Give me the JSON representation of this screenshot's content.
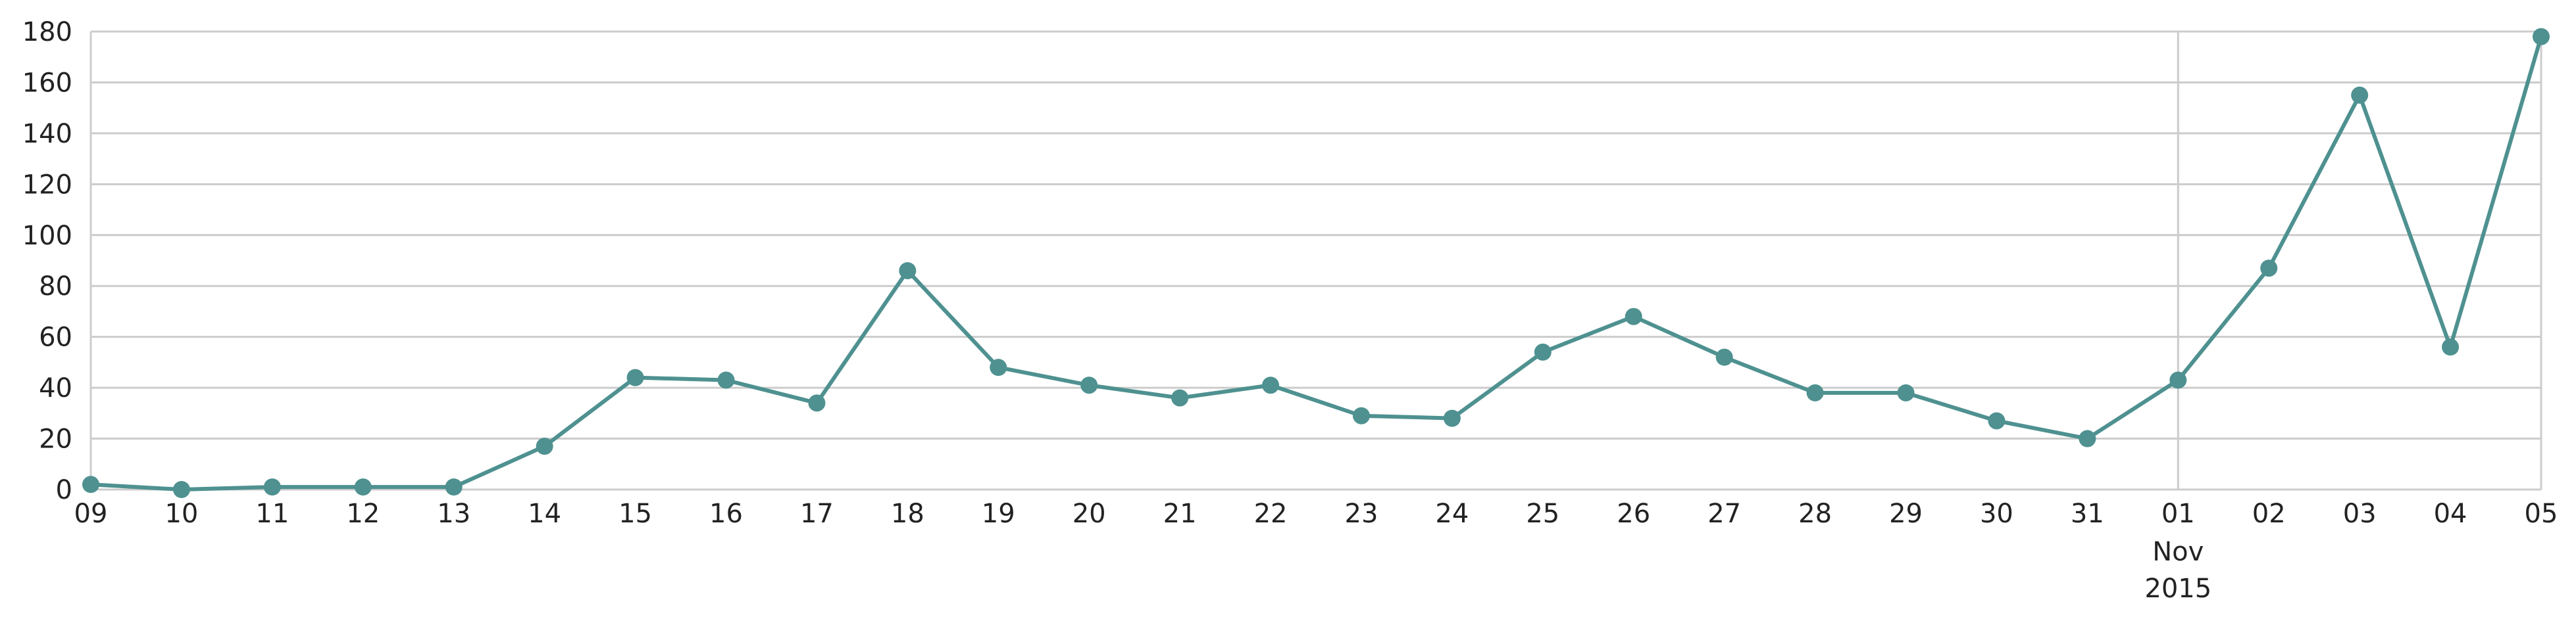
{
  "chart_data": {
    "type": "line",
    "x": [
      "09",
      "10",
      "11",
      "12",
      "13",
      "14",
      "15",
      "16",
      "17",
      "18",
      "19",
      "20",
      "21",
      "22",
      "23",
      "24",
      "25",
      "26",
      "27",
      "28",
      "29",
      "30",
      "31",
      "01",
      "02",
      "03",
      "04",
      "05"
    ],
    "x_dates": [
      "2015-10-09",
      "2015-10-10",
      "2015-10-11",
      "2015-10-12",
      "2015-10-13",
      "2015-10-14",
      "2015-10-15",
      "2015-10-16",
      "2015-10-17",
      "2015-10-18",
      "2015-10-19",
      "2015-10-20",
      "2015-10-21",
      "2015-10-22",
      "2015-10-23",
      "2015-10-24",
      "2015-10-25",
      "2015-10-26",
      "2015-10-27",
      "2015-10-28",
      "2015-10-29",
      "2015-10-30",
      "2015-10-31",
      "2015-11-01",
      "2015-11-02",
      "2015-11-03",
      "2015-11-04",
      "2015-11-05"
    ],
    "series": [
      {
        "values": [
          2,
          0,
          1,
          1,
          1,
          17,
          44,
          43,
          34,
          86,
          48,
          41,
          36,
          41,
          29,
          28,
          54,
          68,
          52,
          38,
          38,
          27,
          20,
          43,
          87,
          155,
          56,
          178
        ]
      }
    ],
    "month_marker": {
      "index": 23,
      "month": "Nov",
      "year": "2015"
    },
    "yticks": [
      0,
      20,
      40,
      60,
      80,
      100,
      120,
      140,
      160,
      180
    ],
    "ylim": [
      0,
      180
    ],
    "grid": true,
    "colors": {
      "line": "#4e9190",
      "grid": "#cccccc",
      "text": "#222222"
    }
  }
}
